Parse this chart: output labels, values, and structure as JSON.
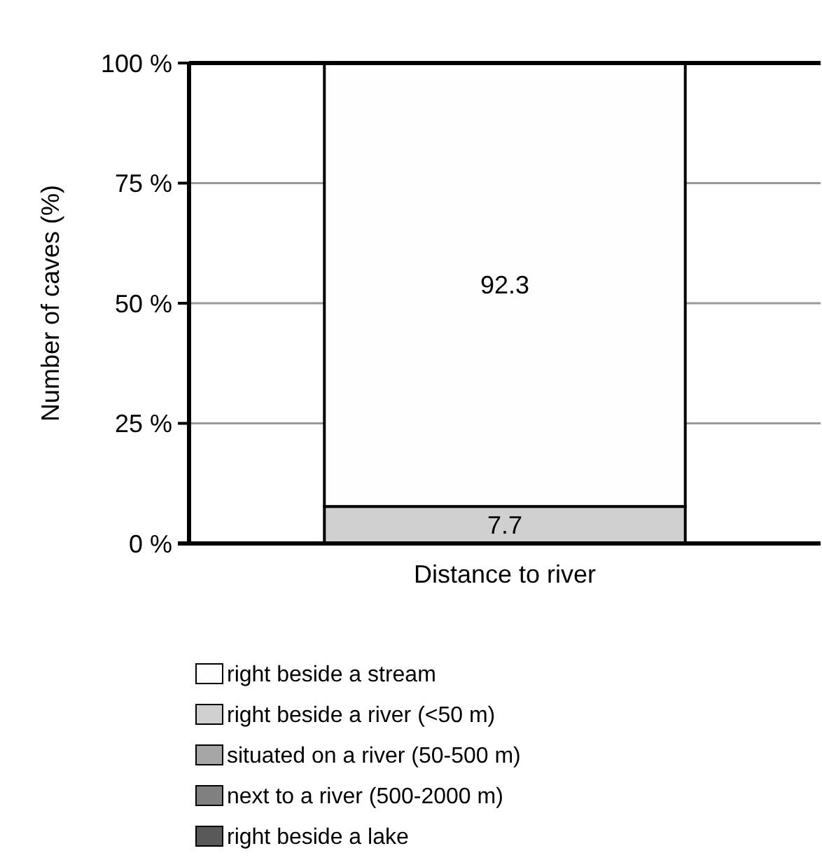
{
  "chart_data": {
    "type": "bar",
    "stacked": true,
    "ylabel": "Number of caves (%)",
    "categories": [
      "Distance to river"
    ],
    "series": [
      {
        "name": "right beside a lake",
        "color": "#595959",
        "values": [
          0
        ],
        "value_labels": [
          null
        ]
      },
      {
        "name": "next to a river (500-2000 m)",
        "color": "#808080",
        "values": [
          0
        ],
        "value_labels": [
          null
        ]
      },
      {
        "name": "situated on a river (50-500 m)",
        "color": "#a6a6a6",
        "values": [
          0
        ],
        "value_labels": [
          null
        ]
      },
      {
        "name": "right beside a river (<50 m)",
        "color": "#d0d0d0",
        "values": [
          7.7
        ],
        "value_labels": [
          "7.7"
        ]
      },
      {
        "name": "right beside a stream",
        "color": "#fefefe",
        "values": [
          92.3
        ],
        "value_labels": [
          "92.3"
        ]
      }
    ],
    "ylim": [
      0,
      100
    ],
    "yticks": [
      {
        "value": 0,
        "label": "0 %"
      },
      {
        "value": 25,
        "label": "25 %"
      },
      {
        "value": 50,
        "label": "50 %"
      },
      {
        "value": 75,
        "label": "75 %"
      },
      {
        "value": 100,
        "label": "100 %"
      }
    ],
    "grid": "y",
    "legend": "bottom"
  }
}
